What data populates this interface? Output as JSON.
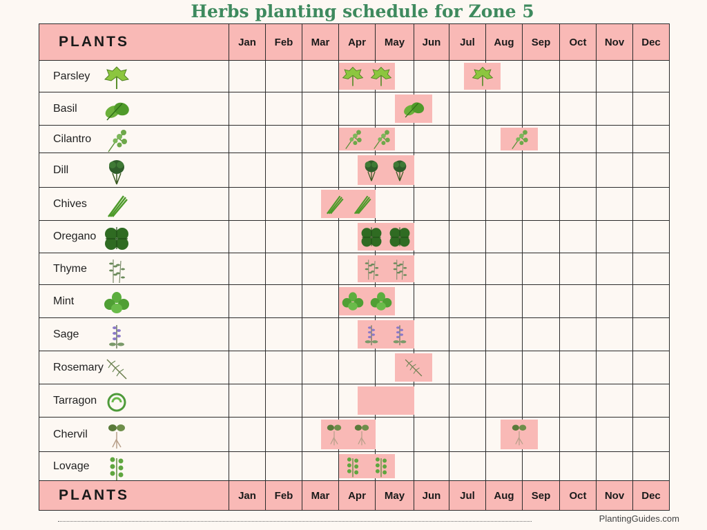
{
  "title": "Herbs planting schedule for Zone 5",
  "plants_label": "PLANTS",
  "months_top": [
    "Jan",
    "Feb",
    "Mar",
    "Apr",
    "May",
    "Jun",
    "Jul",
    "Aug",
    "Sep",
    "Oct",
    "Nov",
    "Dec"
  ],
  "months_bottom": [
    "Jan",
    "Feb",
    "Mar",
    "Apr",
    "May",
    "Jun",
    "Jul",
    "Aug",
    "Sep",
    "Oct",
    "Nov",
    "Dec"
  ],
  "plants": [
    {
      "name": "Parsley",
      "icon": "parsley-icon",
      "periods": [
        {
          "start": 3,
          "end": 4.5,
          "icons": 2
        },
        {
          "start": 6.4,
          "end": 7.4,
          "icons": 1
        }
      ]
    },
    {
      "name": "Basil",
      "icon": "basil-icon",
      "periods": [
        {
          "start": 4.5,
          "end": 5.5,
          "icons": 1
        }
      ]
    },
    {
      "name": "Cilantro",
      "icon": "cilantro-icon",
      "periods": [
        {
          "start": 3,
          "end": 4.5,
          "icons": 2
        },
        {
          "start": 7.4,
          "end": 8.4,
          "icons": 1
        }
      ]
    },
    {
      "name": "Dill",
      "icon": "dill-icon",
      "periods": [
        {
          "start": 3.5,
          "end": 5,
          "icons": 2
        }
      ]
    },
    {
      "name": "Chives",
      "icon": "chives-icon",
      "periods": [
        {
          "start": 2.5,
          "end": 4,
          "icons": 2
        }
      ]
    },
    {
      "name": "Oregano",
      "icon": "oregano-icon",
      "periods": [
        {
          "start": 3.5,
          "end": 5,
          "icons": 2
        }
      ]
    },
    {
      "name": "Thyme",
      "icon": "thyme-icon",
      "periods": [
        {
          "start": 3.5,
          "end": 5,
          "icons": 2
        }
      ]
    },
    {
      "name": "Mint",
      "icon": "mint-icon",
      "periods": [
        {
          "start": 3,
          "end": 4.5,
          "icons": 2
        }
      ]
    },
    {
      "name": "Sage",
      "icon": "sage-icon",
      "periods": [
        {
          "start": 3.5,
          "end": 5,
          "icons": 2
        }
      ]
    },
    {
      "name": "Rosemary",
      "icon": "rosemary-icon",
      "periods": [
        {
          "start": 4.5,
          "end": 5.5,
          "icons": 1
        }
      ]
    },
    {
      "name": "Tarragon",
      "icon": "tarragon-icon",
      "periods": [
        {
          "start": 3.5,
          "end": 5,
          "icons": 0
        }
      ]
    },
    {
      "name": "Chervil",
      "icon": "chervil-icon",
      "periods": [
        {
          "start": 2.5,
          "end": 4,
          "icons": 2
        },
        {
          "start": 7.4,
          "end": 8.4,
          "icons": 1
        }
      ]
    },
    {
      "name": "Lovage",
      "icon": "lovage-icon",
      "periods": [
        {
          "start": 3,
          "end": 4.5,
          "icons": 2
        }
      ]
    }
  ],
  "colors": {
    "title": "#3e8a5e",
    "header_fill": "#f9b9b6",
    "bar_fill": "#f9b9b6",
    "background": "#fdf8f3",
    "grid": "#2a2a2a"
  },
  "credit": "PlantingGuides.com"
}
